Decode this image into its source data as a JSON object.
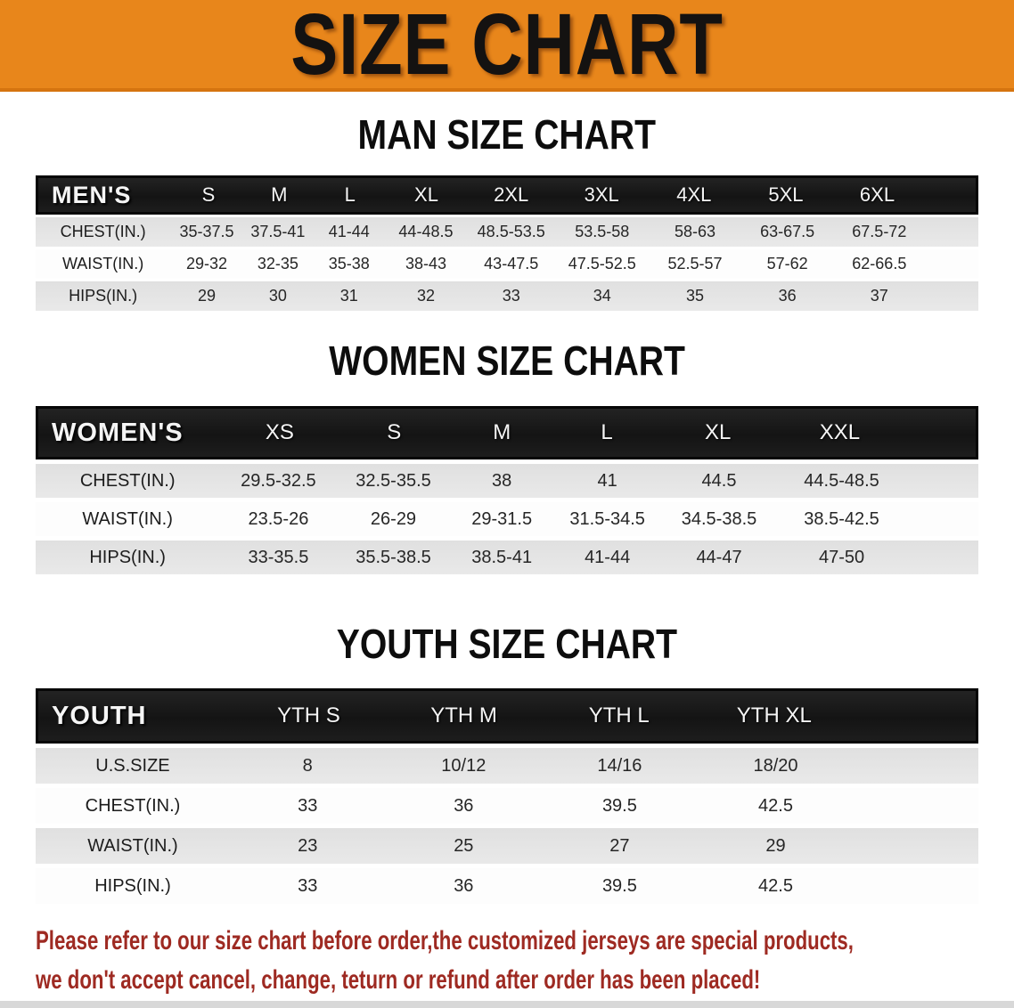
{
  "banner": {
    "title": "SIZE CHART",
    "bg_color": "#E8861B",
    "text_color": "#141211"
  },
  "sections": [
    {
      "id": "men",
      "heading": "MAN SIZE CHART",
      "label": "MEN'S",
      "columns": [
        "S",
        "M",
        "L",
        "XL",
        "2XL",
        "3XL",
        "4XL",
        "5XL",
        "6XL"
      ],
      "rows": [
        {
          "label": "CHEST(IN.)",
          "values": [
            "35-37.5",
            "37.5-41",
            "41-44",
            "44-48.5",
            "48.5-53.5",
            "53.5-58",
            "58-63",
            "63-67.5",
            "67.5-72"
          ]
        },
        {
          "label": "WAIST(IN.)",
          "values": [
            "29-32",
            "32-35",
            "35-38",
            "38-43",
            "43-47.5",
            "47.5-52.5",
            "52.5-57",
            "57-62",
            "62-66.5"
          ]
        },
        {
          "label": "HIPS(IN.)",
          "values": [
            "29",
            "30",
            "31",
            "32",
            "33",
            "34",
            "35",
            "36",
            "37"
          ]
        }
      ]
    },
    {
      "id": "women",
      "heading": "WOMEN SIZE CHART",
      "label": "WOMEN'S",
      "columns": [
        "XS",
        "S",
        "M",
        "L",
        "XL",
        "XXL"
      ],
      "rows": [
        {
          "label": "CHEST(IN.)",
          "values": [
            "29.5-32.5",
            "32.5-35.5",
            "38",
            "41",
            "44.5",
            "44.5-48.5"
          ]
        },
        {
          "label": "WAIST(IN.)",
          "values": [
            "23.5-26",
            "26-29",
            "29-31.5",
            "31.5-34.5",
            "34.5-38.5",
            "38.5-42.5"
          ]
        },
        {
          "label": "HIPS(IN.)",
          "values": [
            "33-35.5",
            "35.5-38.5",
            "38.5-41",
            "41-44",
            "44-47",
            "47-50"
          ]
        }
      ]
    },
    {
      "id": "youth",
      "heading": "YOUTH SIZE CHART",
      "label": "YOUTH",
      "columns": [
        "YTH S",
        "YTH M",
        "YTH L",
        "YTH XL"
      ],
      "rows": [
        {
          "label": "U.S.SIZE",
          "values": [
            "8",
            "10/12",
            "14/16",
            "18/20"
          ]
        },
        {
          "label": "CHEST(IN.)",
          "values": [
            "33",
            "36",
            "39.5",
            "42.5"
          ]
        },
        {
          "label": "WAIST(IN.)",
          "values": [
            "23",
            "25",
            "27",
            "29"
          ]
        },
        {
          "label": "HIPS(IN.)",
          "values": [
            "33",
            "36",
            "39.5",
            "42.5"
          ]
        }
      ]
    }
  ],
  "disclaimer": {
    "line1": "Please refer to our size chart before order,the customized jerseys are special products,",
    "line2": "we don't accept cancel, change, teturn or refund after order has been placed!",
    "text_color": "#9E2A22"
  },
  "colors": {
    "header_bar_bg": "#161616",
    "header_bar_text": "#f5f5f5",
    "row_shade_bg": "#e5e5e5",
    "row_plain_bg": "#fdfdfd"
  }
}
